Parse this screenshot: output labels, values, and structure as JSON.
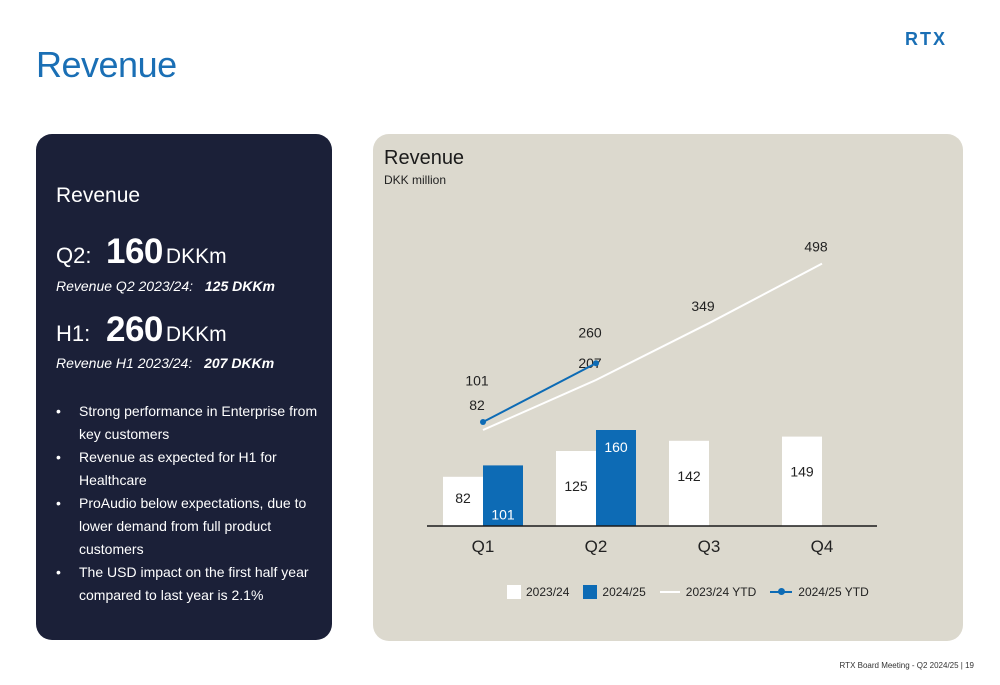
{
  "page": {
    "title": "Revenue",
    "footer": "RTX Board Meeting - Q2 2024/25 | 19"
  },
  "logo": {
    "text": "RTX",
    "color": "#1a6fb5"
  },
  "summary": {
    "heading": "Revenue",
    "q2": {
      "label": "Q2:",
      "value": "160",
      "unit": "DKKm",
      "sub_label": "Revenue Q2 2023/24:",
      "sub_value": "125 DKKm"
    },
    "h1": {
      "label": "H1:",
      "value": "260",
      "unit": "DKKm",
      "sub_label": "Revenue H1 2023/24:",
      "sub_value": "207 DKKm"
    },
    "bullets": [
      "Strong performance in Enterprise from key customers",
      "Revenue as expected for H1 for Healthcare",
      "ProAudio below expectations, due to lower demand from full product customers",
      "The USD impact on the first half year compared to last year is 2.1%"
    ]
  },
  "colors": {
    "panel_dark": "#1b2038",
    "panel_light": "#dcd9ce",
    "series_2023": "#ffffff",
    "series_2024": "#0d6bb5",
    "line_2023": "#ffffff",
    "line_2024": "#0d6bb5"
  },
  "chart_data": {
    "type": "bar",
    "title": "Revenue",
    "subtitle": "DKK million",
    "categories": [
      "Q1",
      "Q2",
      "Q3",
      "Q4"
    ],
    "series": [
      {
        "name": "2023/24",
        "kind": "bar",
        "values": [
          82,
          125,
          142,
          149
        ]
      },
      {
        "name": "2024/25",
        "kind": "bar",
        "values": [
          101,
          160,
          null,
          null
        ]
      },
      {
        "name": "2023/24 YTD",
        "kind": "line",
        "values": [
          82,
          207,
          349,
          498
        ]
      },
      {
        "name": "2024/25 YTD",
        "kind": "line",
        "values": [
          101,
          260,
          null,
          null
        ]
      }
    ],
    "legend_position": "bottom",
    "grid": false
  }
}
